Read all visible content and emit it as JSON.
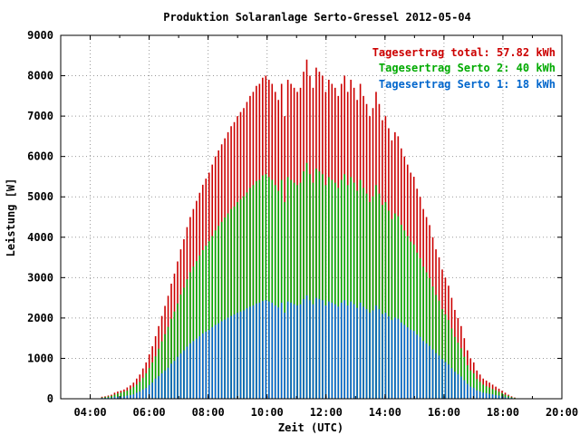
{
  "chart_data": {
    "type": "bar",
    "title": "Produktion Solaranlage Serto-Gressel 2012-05-04",
    "xlabel": "Zeit (UTC)",
    "ylabel": "Leistung [W]",
    "xlim": [
      3,
      20
    ],
    "ylim": [
      0,
      9000
    ],
    "xticks": [
      "",
      "04:00",
      "06:00",
      "08:00",
      "10:00",
      "12:00",
      "14:00",
      "16:00",
      "18:00",
      "20:00"
    ],
    "yticks": [
      "0",
      "1000",
      "2000",
      "3000",
      "4000",
      "5000",
      "6000",
      "7000",
      "8000",
      "9000"
    ],
    "grid": true,
    "legend_position": "top-right",
    "series": [
      {
        "name": "Tagesertrag total: 57.82 kWh",
        "color": "#cc0000",
        "values": [
          50,
          60,
          80,
          100,
          150,
          180,
          200,
          230,
          280,
          330,
          400,
          500,
          600,
          750,
          900,
          1100,
          1300,
          1550,
          1800,
          2050,
          2300,
          2550,
          2850,
          3100,
          3400,
          3700,
          3950,
          4250,
          4500,
          4700,
          4900,
          5100,
          5300,
          5450,
          5600,
          5800,
          6000,
          6150,
          6300,
          6450,
          6600,
          6750,
          6850,
          7000,
          7100,
          7200,
          7350,
          7500,
          7600,
          7750,
          7800,
          7950,
          8000,
          7900,
          7800,
          7600,
          7400,
          7800,
          7000,
          7900,
          7800,
          7700,
          7600,
          7700,
          8100,
          8400,
          8000,
          7700,
          8200,
          8100,
          8000,
          7600,
          7900,
          7800,
          7700,
          7500,
          7800,
          8000,
          7600,
          7900,
          7700,
          7400,
          7800,
          7500,
          7300,
          7000,
          7200,
          7600,
          7300,
          6900,
          7000,
          6700,
          6400,
          6600,
          6500,
          6200,
          6000,
          5800,
          5600,
          5500,
          5200,
          5000,
          4700,
          4500,
          4300,
          4000,
          3700,
          3500,
          3200,
          3000,
          2800,
          2500,
          2200,
          2000,
          1800,
          1500,
          1200,
          1000,
          900,
          700,
          600,
          500,
          450,
          400,
          350,
          300,
          250,
          200,
          150,
          100,
          60,
          30
        ]
      },
      {
        "name": "Tagesertrag Serto 2: 40 kWh",
        "color": "#00aa00",
        "values": [
          30,
          40,
          55,
          70,
          100,
          130,
          150,
          170,
          200,
          240,
          290,
          350,
          420,
          520,
          630,
          760,
          900,
          1050,
          1240,
          1420,
          1600,
          1780,
          1980,
          2160,
          2360,
          2580,
          2750,
          2960,
          3130,
          3270,
          3410,
          3550,
          3680,
          3790,
          3900,
          4030,
          4170,
          4280,
          4380,
          4490,
          4590,
          4700,
          4760,
          4870,
          4940,
          5010,
          5110,
          5220,
          5290,
          5390,
          5420,
          5530,
          5560,
          5490,
          5420,
          5290,
          5150,
          5420,
          4870,
          5490,
          5420,
          5350,
          5290,
          5350,
          5630,
          5840,
          5560,
          5350,
          5700,
          5630,
          5560,
          5290,
          5490,
          5420,
          5350,
          5220,
          5420,
          5560,
          5290,
          5490,
          5350,
          5150,
          5420,
          5220,
          5080,
          4870,
          5010,
          5290,
          5080,
          4800,
          4870,
          4660,
          4450,
          4590,
          4520,
          4310,
          4170,
          4030,
          3890,
          3820,
          3620,
          3480,
          3270,
          3130,
          2990,
          2780,
          2570,
          2430,
          2220,
          2090,
          1950,
          1740,
          1530,
          1390,
          1250,
          1040,
          830,
          700,
          630,
          490,
          420,
          350,
          310,
          280,
          240,
          210,
          170,
          140,
          100,
          70,
          40,
          20
        ]
      },
      {
        "name": "Tagesertrag Serto 1: 18 kWh",
        "color": "#0066cc",
        "values": [
          20,
          20,
          25,
          30,
          50,
          50,
          50,
          60,
          80,
          90,
          110,
          150,
          180,
          230,
          270,
          340,
          400,
          500,
          560,
          630,
          700,
          770,
          870,
          940,
          1040,
          1120,
          1200,
          1290,
          1370,
          1430,
          1490,
          1550,
          1620,
          1660,
          1700,
          1770,
          1830,
          1870,
          1920,
          1960,
          2010,
          2050,
          2090,
          2130,
          2160,
          2190,
          2240,
          2280,
          2310,
          2360,
          2380,
          2420,
          2440,
          2410,
          2380,
          2310,
          2260,
          2380,
          2130,
          2410,
          2380,
          2340,
          2310,
          2340,
          2470,
          2560,
          2440,
          2340,
          2500,
          2470,
          2440,
          2310,
          2410,
          2380,
          2340,
          2280,
          2380,
          2440,
          2310,
          2410,
          2340,
          2250,
          2380,
          2280,
          2220,
          2130,
          2190,
          2310,
          2220,
          2100,
          2130,
          2040,
          1950,
          2010,
          1980,
          1890,
          1830,
          1770,
          1710,
          1680,
          1590,
          1530,
          1430,
          1370,
          1310,
          1220,
          1130,
          1070,
          980,
          910,
          850,
          760,
          670,
          610,
          550,
          460,
          370,
          300,
          270,
          210,
          180,
          150,
          140,
          120,
          110,
          90,
          80,
          60,
          40,
          30,
          20,
          10
        ]
      }
    ]
  }
}
